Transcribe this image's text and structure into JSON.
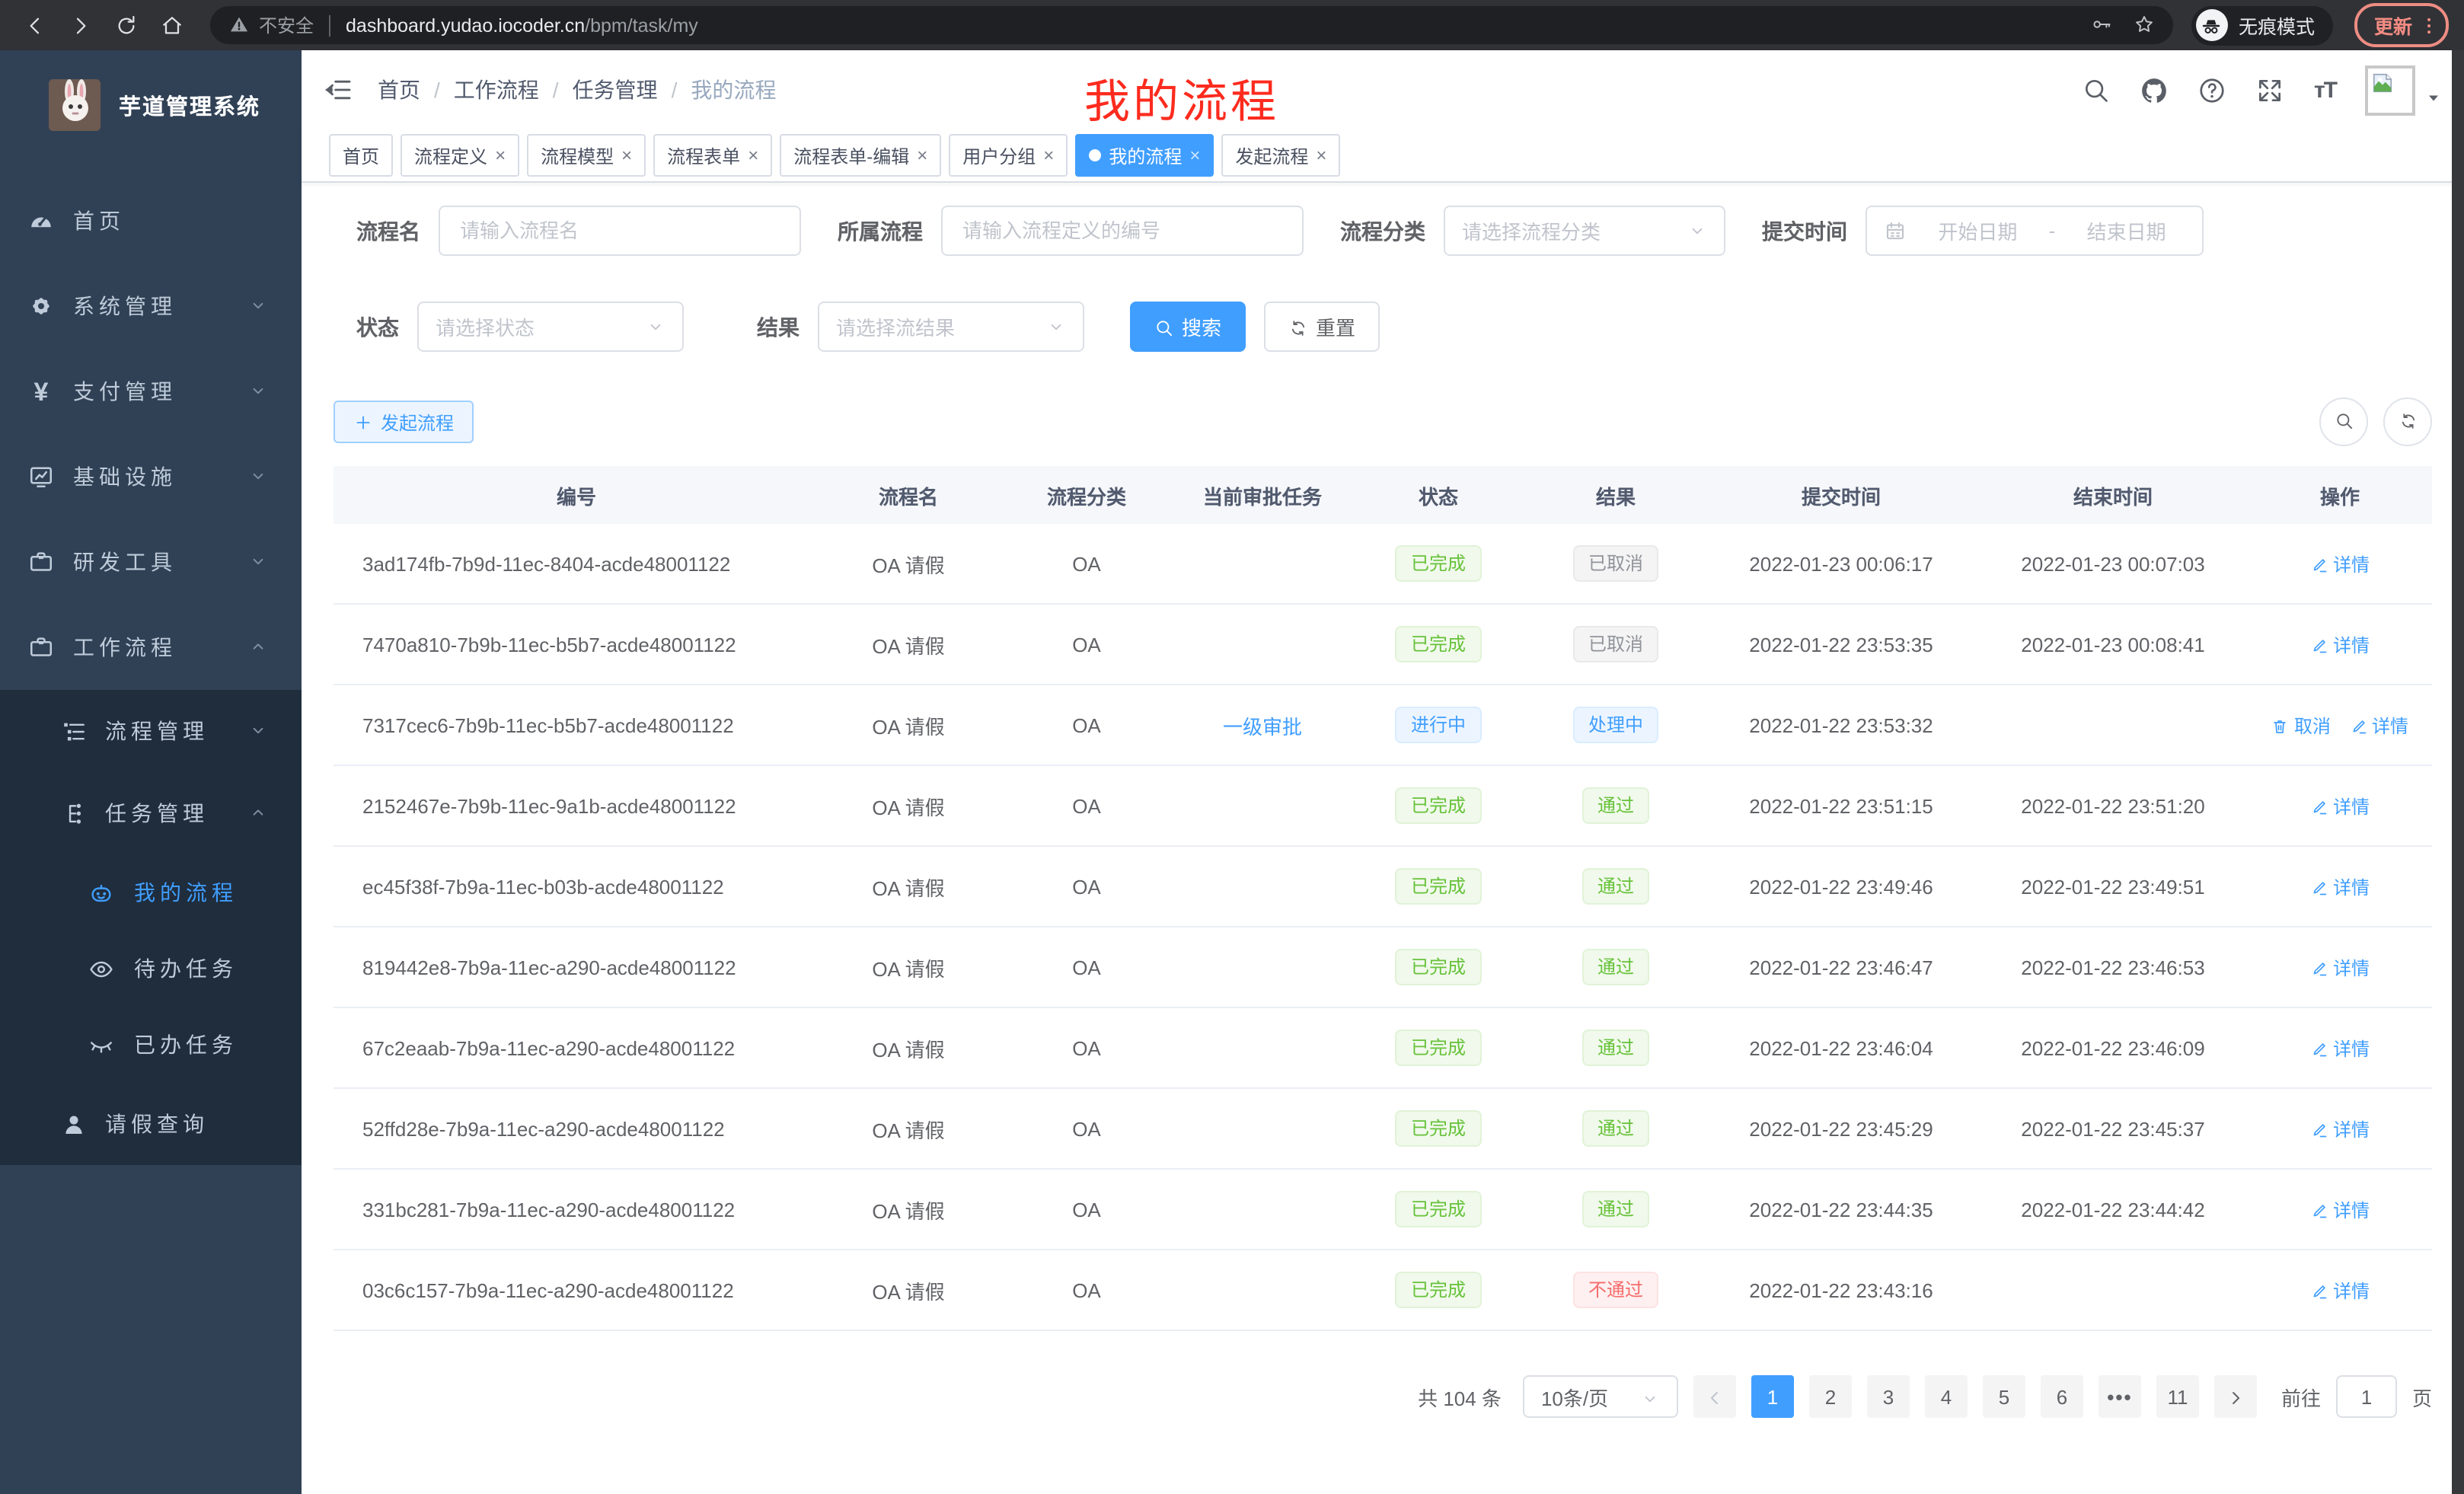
{
  "browser": {
    "security_label": "不安全",
    "url_host": "dashboard.yudao.iocoder.cn",
    "url_path": "/bpm/task/my",
    "incognito_label": "无痕模式",
    "update_label": "更新"
  },
  "theme": {
    "accent": "#409eff",
    "success": "#67c23a",
    "danger": "#f56c6c",
    "info": "#909399",
    "sidebar_bg": "#304156",
    "sidebar_sub_bg": "#1f2d3d",
    "annotation_red": "#fd2b1e"
  },
  "sidebar": {
    "app_title": "芋道管理系统",
    "items": [
      {
        "label": "首页",
        "icon": "dashboard-icon",
        "level": 1
      },
      {
        "label": "系统管理",
        "icon": "gear-icon",
        "level": 1,
        "chevron": "down"
      },
      {
        "label": "支付管理",
        "icon": "yen-icon",
        "level": 1,
        "chevron": "down"
      },
      {
        "label": "基础设施",
        "icon": "monitor-icon",
        "level": 1,
        "chevron": "down"
      },
      {
        "label": "研发工具",
        "icon": "toolbox-icon",
        "level": 1,
        "chevron": "down"
      },
      {
        "label": "工作流程",
        "icon": "toolbox-icon",
        "level": 1,
        "chevron": "up"
      },
      {
        "label": "流程管理",
        "icon": "list-tree-icon",
        "level": 2,
        "chevron": "down"
      },
      {
        "label": "任务管理",
        "icon": "flow-icon",
        "level": 2,
        "chevron": "up"
      },
      {
        "label": "我的流程",
        "icon": "robot-icon",
        "level": 3,
        "active": true
      },
      {
        "label": "待办任务",
        "icon": "eye-icon",
        "level": 3
      },
      {
        "label": "已办任务",
        "icon": "eye-closed-icon",
        "level": 3
      },
      {
        "label": "请假查询",
        "icon": "user-icon",
        "level": 2
      }
    ]
  },
  "header": {
    "breadcrumb": [
      "首页",
      "工作流程",
      "任务管理",
      "我的流程"
    ],
    "annotation": "我的流程"
  },
  "tabs": [
    {
      "label": "首页"
    },
    {
      "label": "流程定义",
      "closable": true
    },
    {
      "label": "流程模型",
      "closable": true
    },
    {
      "label": "流程表单",
      "closable": true
    },
    {
      "label": "流程表单-编辑",
      "closable": true
    },
    {
      "label": "用户分组",
      "closable": true
    },
    {
      "label": "我的流程",
      "closable": true,
      "active": true
    },
    {
      "label": "发起流程",
      "closable": true
    }
  ],
  "filters": {
    "name": {
      "label": "流程名",
      "placeholder": "请输入流程名"
    },
    "definition": {
      "label": "所属流程",
      "placeholder": "请输入流程定义的编号"
    },
    "category": {
      "label": "流程分类",
      "placeholder": "请选择流程分类"
    },
    "submit_time": {
      "label": "提交时间",
      "start": "开始日期",
      "sep": "-",
      "end": "结束日期"
    },
    "status": {
      "label": "状态",
      "placeholder": "请选择状态"
    },
    "result": {
      "label": "结果",
      "placeholder": "请选择流结果"
    },
    "search_label": "搜索",
    "reset_label": "重置"
  },
  "toolbar": {
    "create_label": "发起流程"
  },
  "table": {
    "columns": [
      "编号",
      "流程名",
      "流程分类",
      "当前审批任务",
      "状态",
      "结果",
      "提交时间",
      "结束时间",
      "操作"
    ],
    "rows": [
      {
        "id": "3ad174fb-7b9d-11ec-8404-acde48001122",
        "name": "OA 请假",
        "category": "OA",
        "task": "",
        "status": "已完成",
        "status_type": "success",
        "result": "已取消",
        "result_type": "info",
        "submit_time": "2022-01-23 00:06:17",
        "end_time": "2022-01-23 00:07:03",
        "actions": [
          {
            "label": "详情",
            "icon": "edit-icon"
          }
        ]
      },
      {
        "id": "7470a810-7b9b-11ec-b5b7-acde48001122",
        "name": "OA 请假",
        "category": "OA",
        "task": "",
        "status": "已完成",
        "status_type": "success",
        "result": "已取消",
        "result_type": "info",
        "submit_time": "2022-01-22 23:53:35",
        "end_time": "2022-01-23 00:08:41",
        "actions": [
          {
            "label": "详情",
            "icon": "edit-icon"
          }
        ]
      },
      {
        "id": "7317cec6-7b9b-11ec-b5b7-acde48001122",
        "name": "OA 请假",
        "category": "OA",
        "task": "一级审批",
        "status": "进行中",
        "status_type": "primary",
        "result": "处理中",
        "result_type": "primary",
        "submit_time": "2022-01-22 23:53:32",
        "end_time": "",
        "actions": [
          {
            "label": "取消",
            "icon": "trash-icon"
          },
          {
            "label": "详情",
            "icon": "edit-icon"
          }
        ]
      },
      {
        "id": "2152467e-7b9b-11ec-9a1b-acde48001122",
        "name": "OA 请假",
        "category": "OA",
        "task": "",
        "status": "已完成",
        "status_type": "success",
        "result": "通过",
        "result_type": "success",
        "submit_time": "2022-01-22 23:51:15",
        "end_time": "2022-01-22 23:51:20",
        "actions": [
          {
            "label": "详情",
            "icon": "edit-icon"
          }
        ]
      },
      {
        "id": "ec45f38f-7b9a-11ec-b03b-acde48001122",
        "name": "OA 请假",
        "category": "OA",
        "task": "",
        "status": "已完成",
        "status_type": "success",
        "result": "通过",
        "result_type": "success",
        "submit_time": "2022-01-22 23:49:46",
        "end_time": "2022-01-22 23:49:51",
        "actions": [
          {
            "label": "详情",
            "icon": "edit-icon"
          }
        ]
      },
      {
        "id": "819442e8-7b9a-11ec-a290-acde48001122",
        "name": "OA 请假",
        "category": "OA",
        "task": "",
        "status": "已完成",
        "status_type": "success",
        "result": "通过",
        "result_type": "success",
        "submit_time": "2022-01-22 23:46:47",
        "end_time": "2022-01-22 23:46:53",
        "actions": [
          {
            "label": "详情",
            "icon": "edit-icon"
          }
        ]
      },
      {
        "id": "67c2eaab-7b9a-11ec-a290-acde48001122",
        "name": "OA 请假",
        "category": "OA",
        "task": "",
        "status": "已完成",
        "status_type": "success",
        "result": "通过",
        "result_type": "success",
        "submit_time": "2022-01-22 23:46:04",
        "end_time": "2022-01-22 23:46:09",
        "actions": [
          {
            "label": "详情",
            "icon": "edit-icon"
          }
        ]
      },
      {
        "id": "52ffd28e-7b9a-11ec-a290-acde48001122",
        "name": "OA 请假",
        "category": "OA",
        "task": "",
        "status": "已完成",
        "status_type": "success",
        "result": "通过",
        "result_type": "success",
        "submit_time": "2022-01-22 23:45:29",
        "end_time": "2022-01-22 23:45:37",
        "actions": [
          {
            "label": "详情",
            "icon": "edit-icon"
          }
        ]
      },
      {
        "id": "331bc281-7b9a-11ec-a290-acde48001122",
        "name": "OA 请假",
        "category": "OA",
        "task": "",
        "status": "已完成",
        "status_type": "success",
        "result": "通过",
        "result_type": "success",
        "submit_time": "2022-01-22 23:44:35",
        "end_time": "2022-01-22 23:44:42",
        "actions": [
          {
            "label": "详情",
            "icon": "edit-icon"
          }
        ]
      },
      {
        "id": "03c6c157-7b9a-11ec-a290-acde48001122",
        "name": "OA 请假",
        "category": "OA",
        "task": "",
        "status": "已完成",
        "status_type": "success",
        "result": "不通过",
        "result_type": "danger",
        "submit_time": "2022-01-22 23:43:16",
        "end_time": "",
        "actions": [
          {
            "label": "详情",
            "icon": "edit-icon"
          }
        ]
      }
    ]
  },
  "pagination": {
    "total_label": "共 104 条",
    "page_size": "10条/页",
    "pages": [
      "1",
      "2",
      "3",
      "4",
      "5",
      "6",
      "•••",
      "11"
    ],
    "active_page": "1",
    "goto_label": "前往",
    "goto_value": "1",
    "unit_label": "页"
  }
}
